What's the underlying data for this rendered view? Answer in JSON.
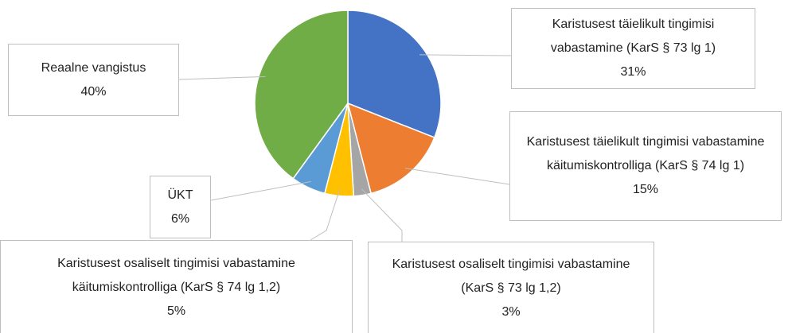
{
  "chart_data": {
    "type": "pie",
    "categories": [
      "Karistusest täielikult tingimisi vabastamine (KarS § 73 lg 1)",
      "Karistusest täielikult tingimisi vabastamine käitumiskontrolliga (KarS § 74 lg 1)",
      "Karistusest osaliselt tingimisi vabastamine (KarS § 73 lg 1,2)",
      "Karistusest osaliselt tingimisi vabastamine käitumiskontrolliga (KarS § 74 lg 1,2)",
      "ÜKT",
      "Reaalne vangistus"
    ],
    "values": [
      31,
      15,
      3,
      5,
      6,
      40
    ],
    "value_labels": [
      "31%",
      "15%",
      "3%",
      "5%",
      "6%",
      "40%"
    ],
    "colors": [
      "#4472c4",
      "#ed7d31",
      "#a5a5a5",
      "#ffc000",
      "#5b9bd5",
      "#70ad47"
    ]
  }
}
